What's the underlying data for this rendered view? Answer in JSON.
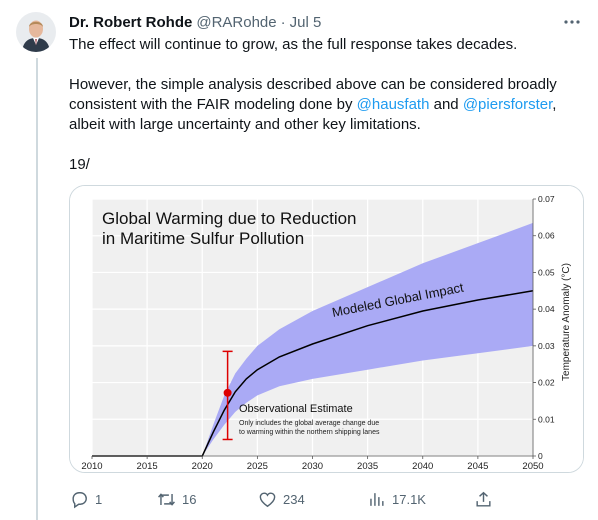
{
  "tweet": {
    "author_name": "Dr. Robert Rohde",
    "handle": "@RARohde",
    "separator": "·",
    "time": "Jul 5",
    "more_icon": "more-horizontal-icon",
    "text": {
      "line1": "The effect will continue to grow, as the full response takes decades.",
      "para2_a": "However, the simple analysis described above can be considered broadly consistent with the FAIR modeling done by ",
      "mention1": "@hausfath",
      "para2_b": " and ",
      "mention2": "@piersforster",
      "para2_c": ", albeit with large uncertainty and other key limitations.",
      "counter": "19/"
    }
  },
  "actions": {
    "replies": "1",
    "retweets": "16",
    "likes": "234",
    "views": "17.1K"
  },
  "colors": {
    "link": "#1d9bf0",
    "band": "#aaaaf5",
    "curve": "#000000",
    "estimate": "#dd0000"
  },
  "chart_data": {
    "type": "line",
    "title": "Global Warming due to Reduction in Maritime Sulfur Pollution",
    "title_lines": [
      "Global Warming due to Reduction",
      "in Maritime Sulfur Pollution"
    ],
    "xlabel": "",
    "ylabel": "Temperature Anomaly (°C)",
    "xlim": [
      2010,
      2050
    ],
    "ylim": [
      0,
      0.07
    ],
    "xticks": [
      2010,
      2015,
      2020,
      2025,
      2030,
      2035,
      2040,
      2045,
      2050
    ],
    "yticks": [
      0,
      0.01,
      0.02,
      0.03,
      0.04,
      0.05,
      0.06,
      0.07
    ],
    "ytick_labels": [
      "0",
      "0.01",
      "0.02",
      "0.03",
      "0.04",
      "0.05",
      "0.06",
      "0.07"
    ],
    "grid": true,
    "series": [
      {
        "name": "Modeled Global Impact",
        "x": [
          2010,
          2020,
          2021,
          2022,
          2023,
          2024,
          2025,
          2027,
          2030,
          2035,
          2040,
          2045,
          2050
        ],
        "values": [
          0,
          0,
          0.0065,
          0.0125,
          0.0175,
          0.021,
          0.0235,
          0.027,
          0.0305,
          0.0355,
          0.0395,
          0.0425,
          0.045
        ]
      }
    ],
    "band": {
      "x": [
        2020,
        2021,
        2022,
        2023,
        2024,
        2025,
        2027,
        2030,
        2035,
        2040,
        2045,
        2050
      ],
      "lower": [
        0,
        0.0045,
        0.0085,
        0.012,
        0.0145,
        0.0165,
        0.019,
        0.021,
        0.0235,
        0.026,
        0.028,
        0.03
      ],
      "upper": [
        0,
        0.0085,
        0.0165,
        0.0225,
        0.0265,
        0.03,
        0.0345,
        0.0395,
        0.046,
        0.0525,
        0.058,
        0.0635
      ]
    },
    "estimate": {
      "label": "Observational Estimate",
      "note_lines": [
        "Only includes the global average change due",
        "to warming within the northern shipping lanes"
      ],
      "x": 2022.3,
      "y": 0.0172,
      "low": 0.0045,
      "high": 0.0285
    },
    "annotation": "Modeled Global Impact"
  }
}
